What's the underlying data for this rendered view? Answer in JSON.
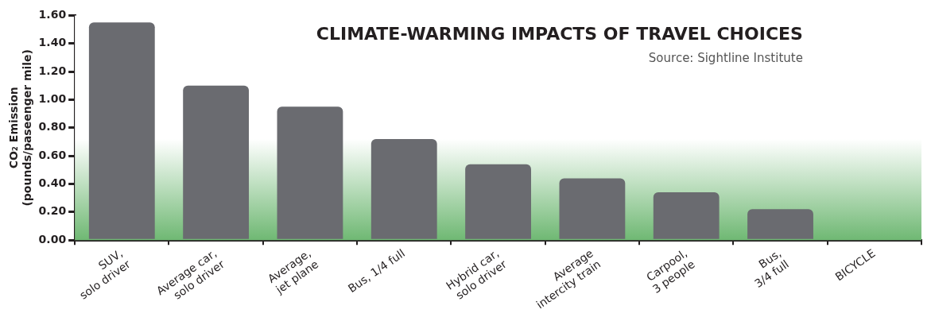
{
  "chart_data": {
    "type": "bar",
    "title": "CLIMATE-WARMING IMPACTS OF TRAVEL CHOICES",
    "annotations": [
      "Source: Sightline Institute"
    ],
    "ylabel": "CO₂ Emission\n(pounds/paseenger mile)",
    "categories": [
      "SUV,\nsolo driver",
      "Average car,\nsolo driver",
      "Average,\njet plane",
      "Bus, 1/4 full",
      "Hybrid car,\nsolo driver",
      "Average\nintercity train",
      "Carpool,\n3 people",
      "Bus,\n3/4 full",
      "BICYCLE"
    ],
    "values": [
      1.55,
      1.1,
      0.95,
      0.72,
      0.54,
      0.44,
      0.34,
      0.22,
      0
    ],
    "color": "#6a6b70",
    "ylim": [
      0,
      1.6
    ],
    "yticks": [
      {
        "value": 0,
        "label": "0.00"
      },
      {
        "value": 0.2,
        "label": "0.20"
      },
      {
        "value": 0.4,
        "label": "0.40"
      },
      {
        "value": 0.6,
        "label": "0.60"
      },
      {
        "value": 0.8,
        "label": "0.80"
      },
      {
        "value": 1.0,
        "label": "1.00"
      },
      {
        "value": 1.2,
        "label": "1.20"
      },
      {
        "value": 1.4,
        "label": "1.40"
      },
      {
        "value": 1.6,
        "label": "1.60"
      }
    ],
    "grid": false,
    "legend": false
  }
}
